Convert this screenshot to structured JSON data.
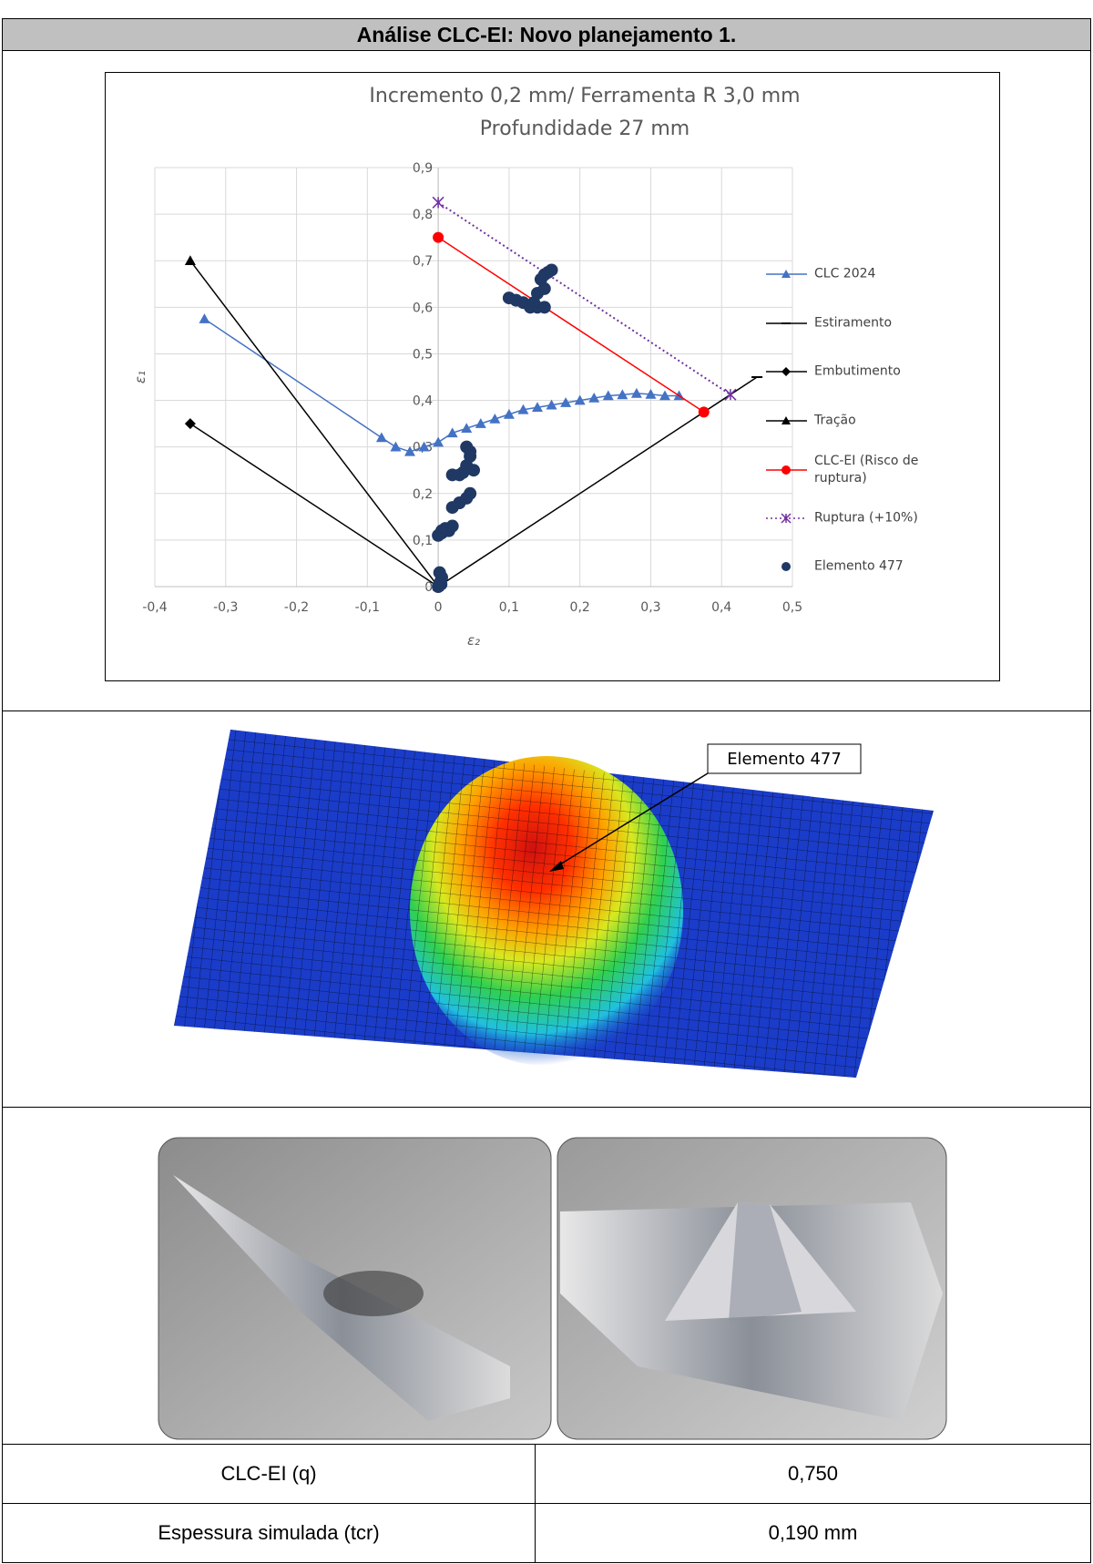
{
  "header": {
    "title": "Análise CLC-EI:  Novo planejamento 1."
  },
  "chart_data": {
    "type": "line",
    "title": "Incremento 0,2 mm/ Ferramenta R 3,0 mm",
    "subtitle": "Profundidade 27 mm",
    "xlabel": "ε₂",
    "ylabel": "ε₁",
    "xlim": [
      -0.4,
      0.5
    ],
    "xticks": [
      {
        "value": -0.4,
        "label": "-0,4"
      },
      {
        "value": -0.3,
        "label": "-0,3"
      },
      {
        "value": -0.2,
        "label": "-0,2"
      },
      {
        "value": -0.1,
        "label": "-0,1"
      },
      0,
      {
        "value": 0.1,
        "label": "0,1"
      },
      {
        "value": 0.2,
        "label": "0,2"
      },
      {
        "value": 0.3,
        "label": "0,3"
      },
      {
        "value": 0.4,
        "label": "0,4"
      },
      {
        "value": 0.5,
        "label": "0,5"
      }
    ],
    "ylim": [
      0,
      0.9
    ],
    "yticks": [
      0,
      {
        "value": 0.1,
        "label": "0,1"
      },
      {
        "value": 0.2,
        "label": "0,2"
      },
      {
        "value": 0.3,
        "label": "0,3"
      },
      {
        "value": 0.4,
        "label": "0,4"
      },
      {
        "value": 0.5,
        "label": "0,5"
      },
      {
        "value": 0.6,
        "label": "0,6"
      },
      {
        "value": 0.7,
        "label": "0,7"
      },
      {
        "value": 0.8,
        "label": "0,8"
      },
      {
        "value": 0.9,
        "label": "0,9"
      }
    ],
    "grid": true,
    "legend": "right",
    "series": [
      {
        "name": "CLC 2024",
        "color": "#4472c4",
        "marker": "triangle",
        "x": [
          -0.33,
          -0.08,
          -0.06,
          -0.04,
          -0.02,
          0,
          0.02,
          0.04,
          0.06,
          0.08,
          0.1,
          0.12,
          0.14,
          0.16,
          0.18,
          0.2,
          0.22,
          0.24,
          0.26,
          0.28,
          0.3,
          0.32,
          0.34
        ],
        "values": [
          0.575,
          0.32,
          0.3,
          0.29,
          0.3,
          0.31,
          0.33,
          0.34,
          0.35,
          0.36,
          0.37,
          0.38,
          0.385,
          0.39,
          0.395,
          0.4,
          0.405,
          0.41,
          0.412,
          0.415,
          0.413,
          0.41,
          0.41
        ]
      },
      {
        "name": "Estiramento",
        "color": "#000000",
        "marker": "dash",
        "x": [
          0,
          0.45
        ],
        "values": [
          0,
          0.45
        ]
      },
      {
        "name": "Embutimento",
        "color": "#000000",
        "marker": "diamond",
        "x": [
          -0.35,
          0
        ],
        "values": [
          0.35,
          0
        ]
      },
      {
        "name": "Tração",
        "color": "#000000",
        "marker": "triangle",
        "x": [
          -0.35,
          0
        ],
        "values": [
          0.7,
          0
        ]
      },
      {
        "name": "CLC-EI (Risco de ruptura)",
        "color": "#ff0000",
        "marker": "circle",
        "x": [
          0,
          0.375
        ],
        "values": [
          0.75,
          0.375
        ]
      },
      {
        "name": "Ruptura (+10%)",
        "color": "#7030a0",
        "marker": "x",
        "dash": true,
        "x": [
          0,
          0.4125
        ],
        "values": [
          0.825,
          0.4125
        ]
      },
      {
        "name": "Elemento 477",
        "color": "#203864",
        "type": "scatter",
        "marker": "circle",
        "x": [
          0,
          0.003,
          0.005,
          0.002,
          0.004,
          0,
          0.005,
          0.01,
          0.015,
          0.02,
          0.005,
          0.02,
          0.03,
          0.04,
          0.045,
          0.02,
          0.03,
          0.035,
          0.04,
          0.045,
          0.04,
          0.045,
          0.05,
          0.1,
          0.11,
          0.12,
          0.13,
          0.14,
          0.15,
          0.135,
          0.14,
          0.145,
          0.15,
          0.155,
          0.16,
          0.15
        ],
        "values": [
          0,
          0.01,
          0.02,
          0.03,
          0.005,
          0.11,
          0.12,
          0.125,
          0.12,
          0.13,
          0.115,
          0.17,
          0.18,
          0.19,
          0.2,
          0.24,
          0.24,
          0.245,
          0.26,
          0.28,
          0.3,
          0.29,
          0.25,
          0.62,
          0.615,
          0.61,
          0.6,
          0.6,
          0.6,
          0.61,
          0.63,
          0.66,
          0.67,
          0.675,
          0.68,
          0.64
        ]
      }
    ]
  },
  "simulation": {
    "label": "Elemento 477"
  },
  "table": {
    "rows": [
      [
        "CLC-EI (q)",
        "0,750"
      ],
      [
        "Espessura simulada (tcr)",
        "0,190 mm"
      ]
    ]
  }
}
